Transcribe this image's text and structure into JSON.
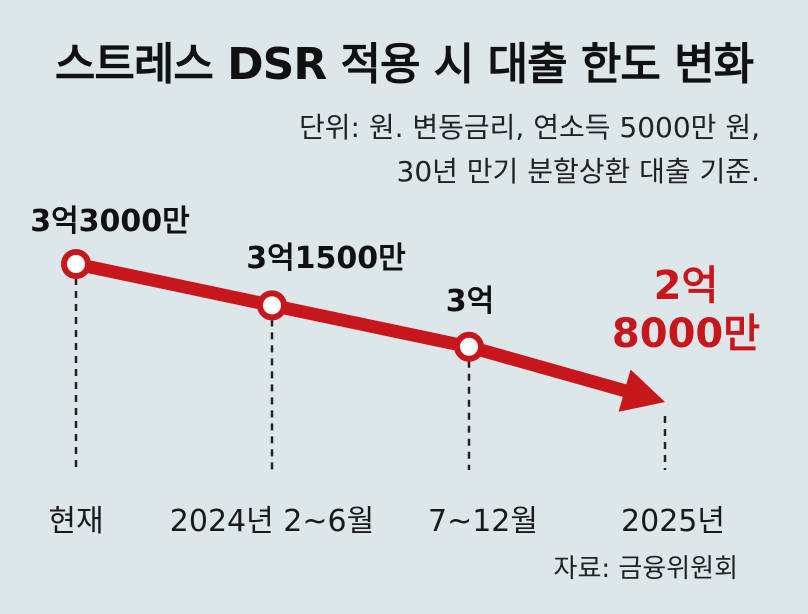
{
  "title": "스트레스 DSR 적용 시 대출 한도 변화",
  "unit_note": [
    "단위: 원. 변동금리, 연소득 5000만 원,",
    "30년 만기 분할상환 대출 기준."
  ],
  "source": "자료: 금융위원회",
  "colors": {
    "accent": "#c8161d",
    "background": "#dde7ea"
  },
  "chart_data": {
    "type": "line",
    "title": "스트레스 DSR 적용 시 대출 한도 변화",
    "categories": [
      "현재",
      "2024년 2~6월",
      "7~12월",
      "2025년"
    ],
    "values": [
      330000000,
      315000000,
      300000000,
      280000000
    ],
    "value_labels": [
      "3억3000만",
      "3억1500만",
      "3억",
      "2억\n8000만"
    ],
    "xlabel": "",
    "ylabel": "",
    "unit": "원",
    "grid": false,
    "legend": "none"
  }
}
